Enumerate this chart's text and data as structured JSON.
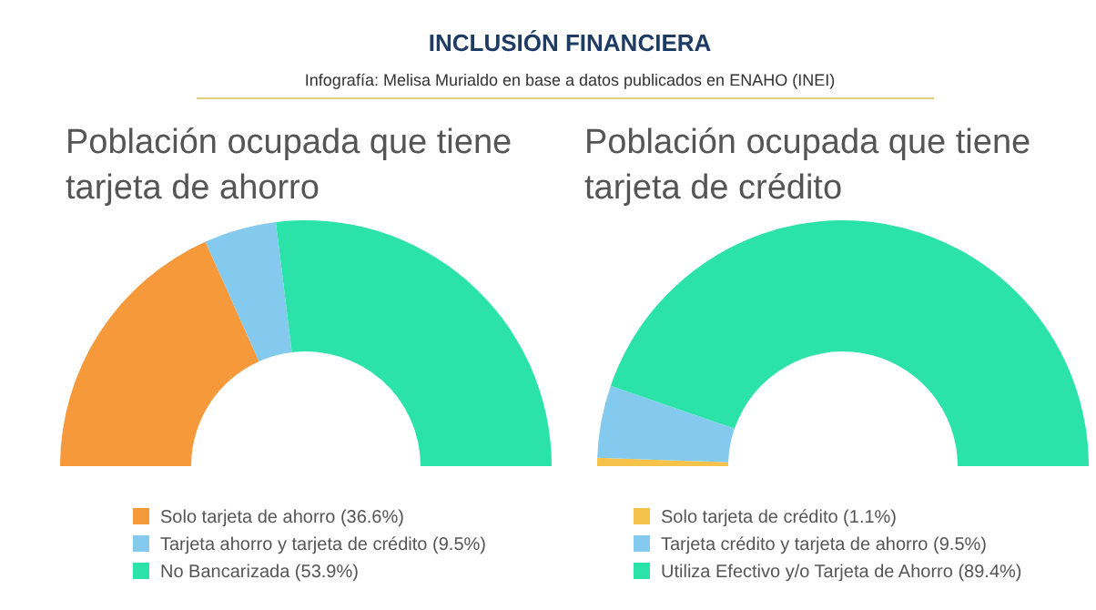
{
  "chart_data": [
    {
      "type": "other",
      "title": "INCLUSIÓN FINANCIERA",
      "subtitle": "Infografía: Melisa Murialdo en base a datos publicados en ENAHO (INEI)"
    },
    {
      "type": "donut",
      "title": "Población ocupada que tiene tarjeta de ahorro",
      "categories": [
        "Solo tarjeta de ahorro (36.6%)",
        "Tarjeta ahorro y tarjeta de crédito (9.5%)",
        "No Bancarizada (53.9%)"
      ],
      "values": [
        36.6,
        9.5,
        53.9
      ],
      "colors": [
        "#f5993b",
        "#84c9ee",
        "#2be3a8"
      ],
      "legend": "bottom"
    },
    {
      "type": "donut",
      "title": "Población ocupada que tiene tarjeta de crédito",
      "categories": [
        "Solo tarjeta de crédito (1.1%)",
        "Tarjeta crédito y tarjeta de ahorro (9.5%)",
        "Utiliza Efectivo y/o Tarjeta de Ahorro (89.4%)"
      ],
      "values": [
        1.1,
        9.5,
        89.4
      ],
      "colors": [
        "#f5c24a",
        "#84c9ee",
        "#2be3a8"
      ],
      "legend": "bottom"
    }
  ]
}
